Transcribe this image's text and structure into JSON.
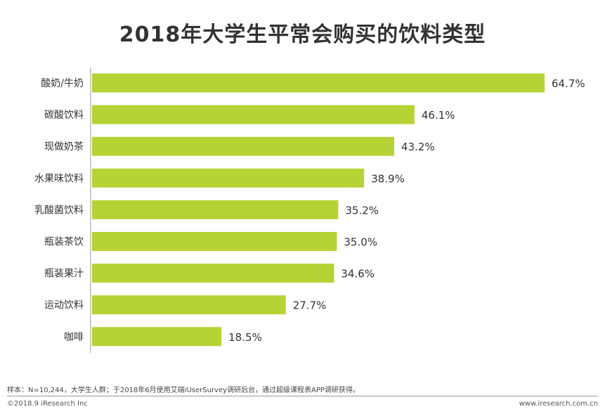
{
  "chart_data": {
    "type": "bar",
    "orientation": "horizontal",
    "title": "2018年大学生平常会购买的饮料类型",
    "categories": [
      "酸奶/牛奶",
      "碳酸饮料",
      "现做奶茶",
      "水果味饮料",
      "乳酸菌饮料",
      "瓶装茶饮",
      "瓶装果汁",
      "运动饮料",
      "咖啡"
    ],
    "values": [
      64.7,
      46.1,
      43.2,
      38.9,
      35.2,
      35.0,
      34.6,
      27.7,
      18.5
    ],
    "labels": [
      "64.7%",
      "46.1%",
      "43.2%",
      "38.9%",
      "35.2%",
      "35.0%",
      "34.6%",
      "27.7%",
      "18.5%"
    ],
    "unit": "%",
    "bar_color": "#b5d334",
    "grid": false
  },
  "note": "样本：N=10,244，大学生人群；于2018年6月使用艾瑞iUserSurvey调研后台，通过超级课程表APP调研获得。",
  "copyright": "©2018.9 iResearch Inc",
  "site": "www.iresearch.com.cn"
}
